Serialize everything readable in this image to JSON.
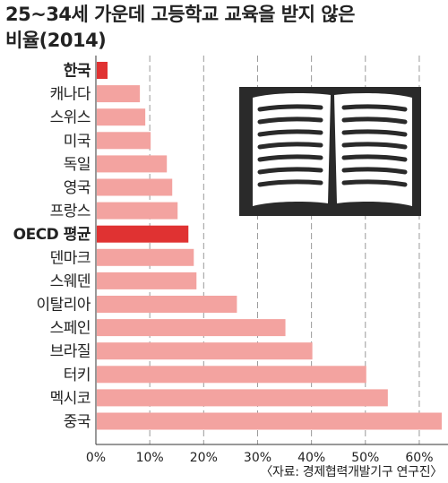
{
  "chart_data": {
    "type": "bar",
    "orientation": "horizontal",
    "title_lines": [
      "25~34세 가운데 고등학교 교육을 받지 않은",
      "비율(2014)"
    ],
    "categories": [
      "한국",
      "캐나다",
      "스위스",
      "미국",
      "독일",
      "영국",
      "프랑스",
      "OECD 평균",
      "덴마크",
      "스웨덴",
      "이탈리아",
      "스페인",
      "브라질",
      "터키",
      "멕시코",
      "중국"
    ],
    "values": [
      2,
      8,
      9,
      10,
      13,
      14,
      15,
      17,
      18,
      18.5,
      26,
      35,
      40,
      50,
      54,
      64
    ],
    "highlight": [
      "한국",
      "OECD 평균"
    ],
    "xlim": [
      0,
      64
    ],
    "xticks": [
      "0%",
      "10%",
      "20%",
      "30%",
      "40%",
      "50%",
      "60%"
    ],
    "grid": true,
    "colors": {
      "bar": "#f3a3a0",
      "highlight": "#e03232"
    },
    "source": "〈자료: 경제협력개발기구 연구진〉",
    "illustration": "open-book-icon"
  }
}
